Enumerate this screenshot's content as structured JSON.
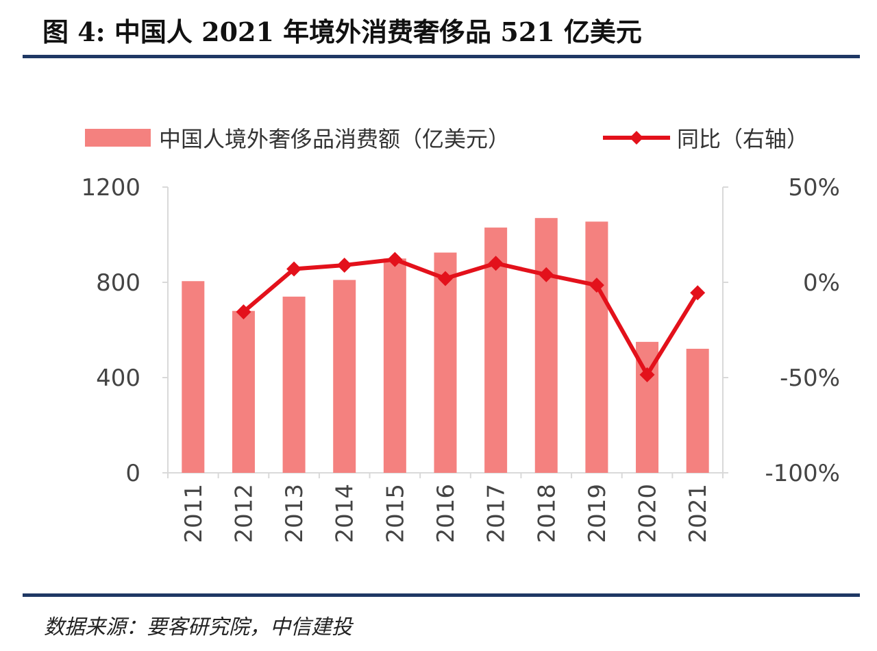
{
  "header": {
    "title": "图 4: 中国人 2021 年境外消费奢侈品 521 亿美元",
    "rule_color": "#1f3864"
  },
  "footer": {
    "source": "数据来源：要客研究院，中信建投"
  },
  "chart_data": {
    "type": "bar",
    "categories": [
      "2011",
      "2012",
      "2013",
      "2014",
      "2015",
      "2016",
      "2017",
      "2018",
      "2019",
      "2020",
      "2021"
    ],
    "series": [
      {
        "name": "中国人境外奢侈品消费额（亿美元）",
        "type": "bar",
        "axis": "left",
        "color": "#f4817f",
        "values": [
          805,
          680,
          740,
          810,
          900,
          925,
          1030,
          1070,
          1055,
          550,
          521
        ]
      },
      {
        "name": "同比（右轴）",
        "type": "line",
        "axis": "right",
        "color": "#e3111b",
        "marker": "diamond",
        "values": [
          null,
          -15.5,
          7,
          9,
          12,
          2,
          10,
          4,
          -1.5,
          -48.5,
          -5.5
        ]
      }
    ],
    "y_left": {
      "min": 0,
      "max": 1200,
      "ticks": [
        0,
        400,
        800,
        1200
      ],
      "tick_labels": [
        "0",
        "400",
        "800",
        "1200"
      ]
    },
    "y_right": {
      "min": -100,
      "max": 50,
      "ticks": [
        -100,
        -50,
        0,
        50
      ],
      "tick_labels": [
        "-100%",
        "-50%",
        "0%",
        "50%"
      ]
    },
    "x_tick_rotation": "vertical",
    "grid": false,
    "legend_position": "top"
  }
}
